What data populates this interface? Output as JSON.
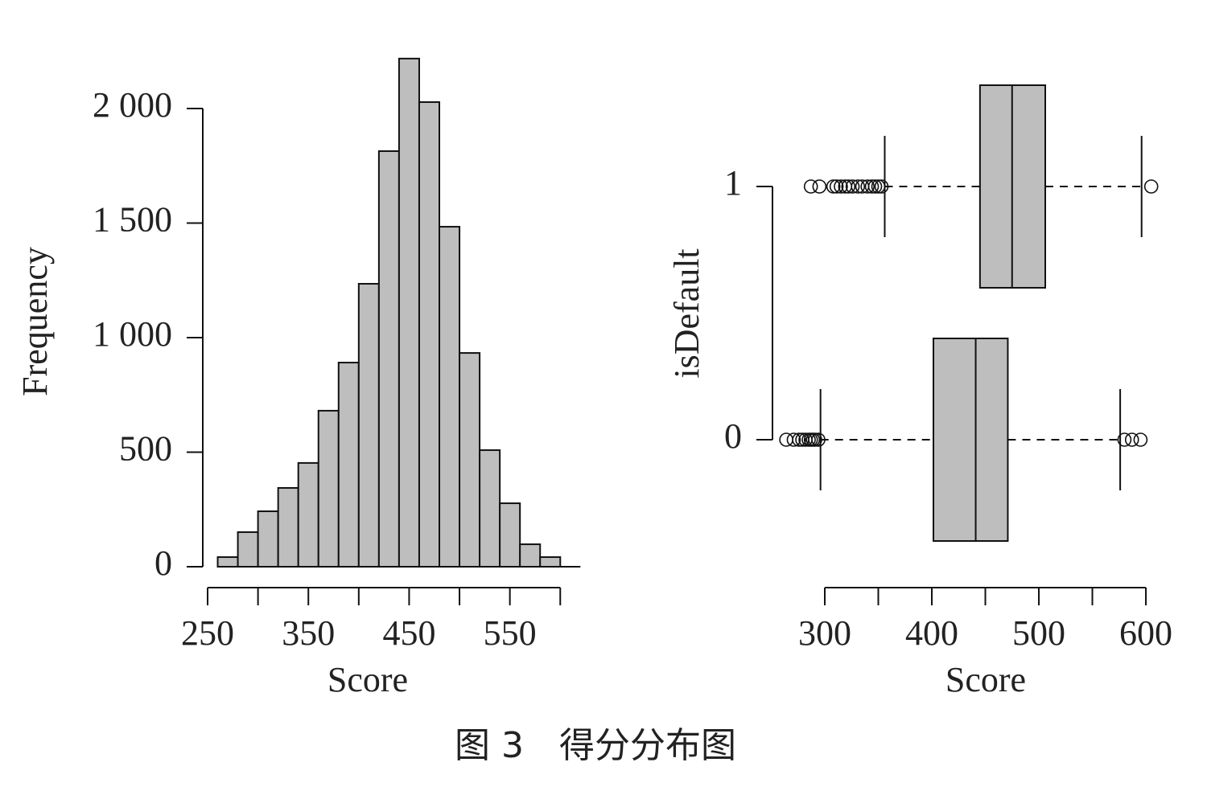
{
  "chart_data": [
    {
      "type": "histogram",
      "x_label": "Score",
      "y_label": "Frequency",
      "bins": [
        260,
        280,
        300,
        320,
        340,
        360,
        380,
        400,
        420,
        440,
        460,
        480,
        500,
        520,
        540,
        560,
        580,
        600
      ],
      "values": [
        42,
        151,
        242,
        344,
        453,
        681,
        891,
        1235,
        1814,
        2218,
        2028,
        1484,
        933,
        509,
        277,
        98,
        42
      ],
      "color": "#bebebe",
      "xlim": [
        240,
        620
      ],
      "ylim": [
        0,
        2250
      ],
      "xticks": [
        250,
        {
          "value": 300,
          "label": null
        },
        350,
        {
          "value": 400,
          "label": null
        },
        450,
        {
          "value": 500,
          "label": null
        },
        550,
        {
          "value": 600,
          "label": null
        }
      ],
      "yticks": [
        0,
        500,
        {
          "value": 1000,
          "label": "1 000"
        },
        {
          "value": 1500,
          "label": "1 500"
        },
        {
          "value": 2000,
          "label": "2 000"
        }
      ]
    },
    {
      "type": "boxplot",
      "orientation": "horizontal",
      "x_label": "Score",
      "y_label": "isDefault",
      "categories": [
        "0",
        "1"
      ],
      "boxes": [
        {
          "min": 296,
          "q1": 401.5,
          "median": 441,
          "q3": 471,
          "max": 576,
          "outliers": [
            264,
            271,
            276,
            279,
            282,
            285,
            287,
            289,
            291,
            294,
            580,
            587,
            595
          ]
        },
        {
          "min": 356,
          "q1": 445,
          "median": 475,
          "q3": 506,
          "max": 596,
          "outliers": [
            287,
            295,
            308,
            311,
            315,
            319,
            322,
            326,
            331,
            335,
            340,
            344,
            347,
            350,
            353,
            605
          ]
        }
      ],
      "color": "#bebebe",
      "xlim": [
        250,
        612
      ],
      "xticks": [
        300,
        {
          "value": 350,
          "label": null
        },
        400,
        {
          "value": 450,
          "label": null
        },
        500,
        {
          "value": 550,
          "label": null
        },
        600
      ]
    }
  ],
  "caption": "图 3　得分分布图"
}
